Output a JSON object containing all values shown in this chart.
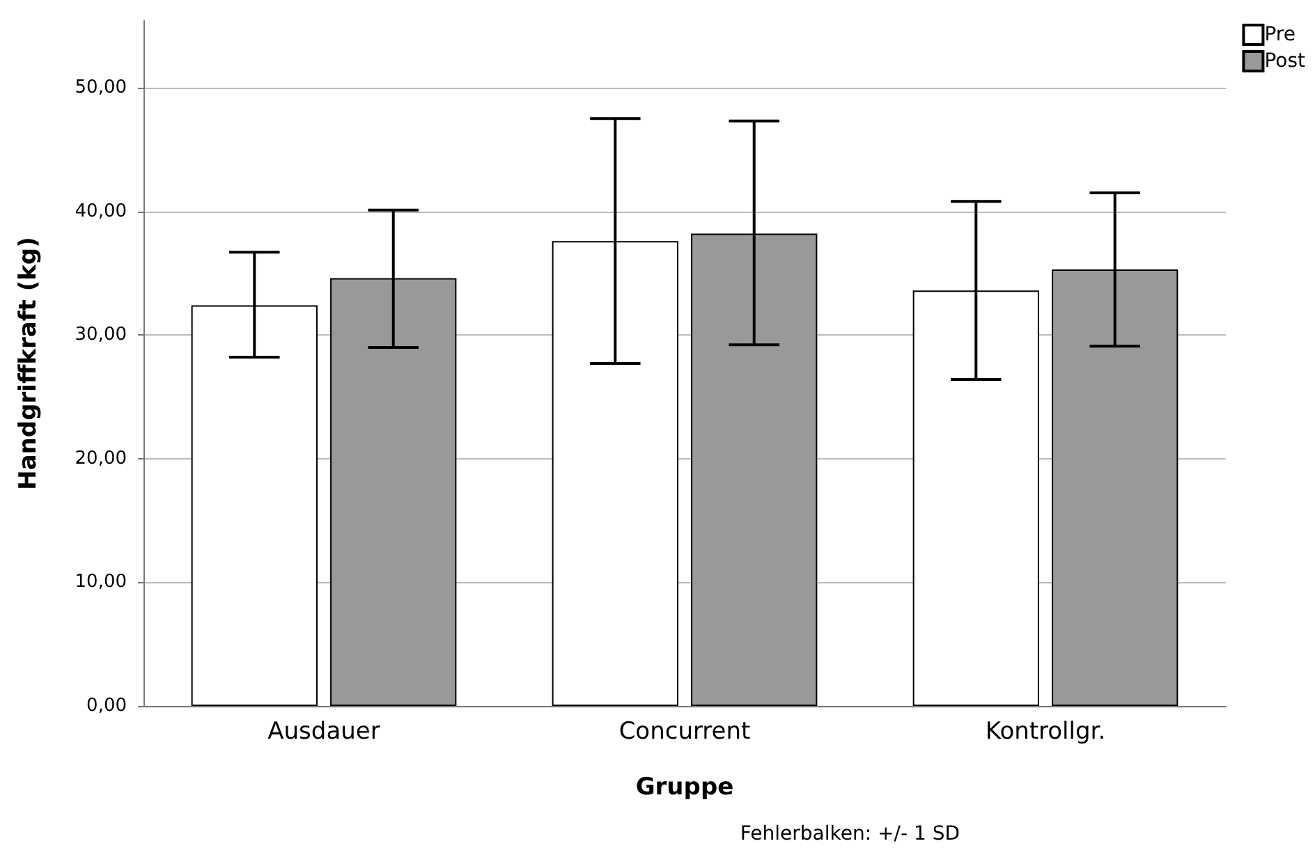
{
  "chart_data": {
    "type": "bar",
    "xlabel": "Gruppe",
    "ylabel": "Handgriffkraft (kg)",
    "categories": [
      "Ausdauer",
      "Concurrent",
      "Kontrollgr."
    ],
    "series": [
      {
        "name": "Pre",
        "color": "#ffffff",
        "values": [
          32.4,
          37.6,
          33.6
        ],
        "errors": [
          [
            28.2,
            36.7
          ],
          [
            27.7,
            47.5
          ],
          [
            26.4,
            40.8
          ]
        ]
      },
      {
        "name": "Post",
        "color": "#999999",
        "values": [
          34.6,
          38.2,
          35.3
        ],
        "errors": [
          [
            29.0,
            40.1
          ],
          [
            29.2,
            47.3
          ],
          [
            29.1,
            41.5
          ]
        ]
      }
    ],
    "ylim": [
      0,
      55.4
    ],
    "yticks": [
      {
        "value": 0,
        "label": "0,00"
      },
      {
        "value": 10,
        "label": "10,00"
      },
      {
        "value": 20,
        "label": "20,00"
      },
      {
        "value": 30,
        "label": "30,00"
      },
      {
        "value": 40,
        "label": "40,00"
      },
      {
        "value": 50,
        "label": "50,00"
      }
    ],
    "grid": "y",
    "legend": "top right",
    "annotations": [
      "Fehlerbalken: +/- 1 SD"
    ]
  }
}
